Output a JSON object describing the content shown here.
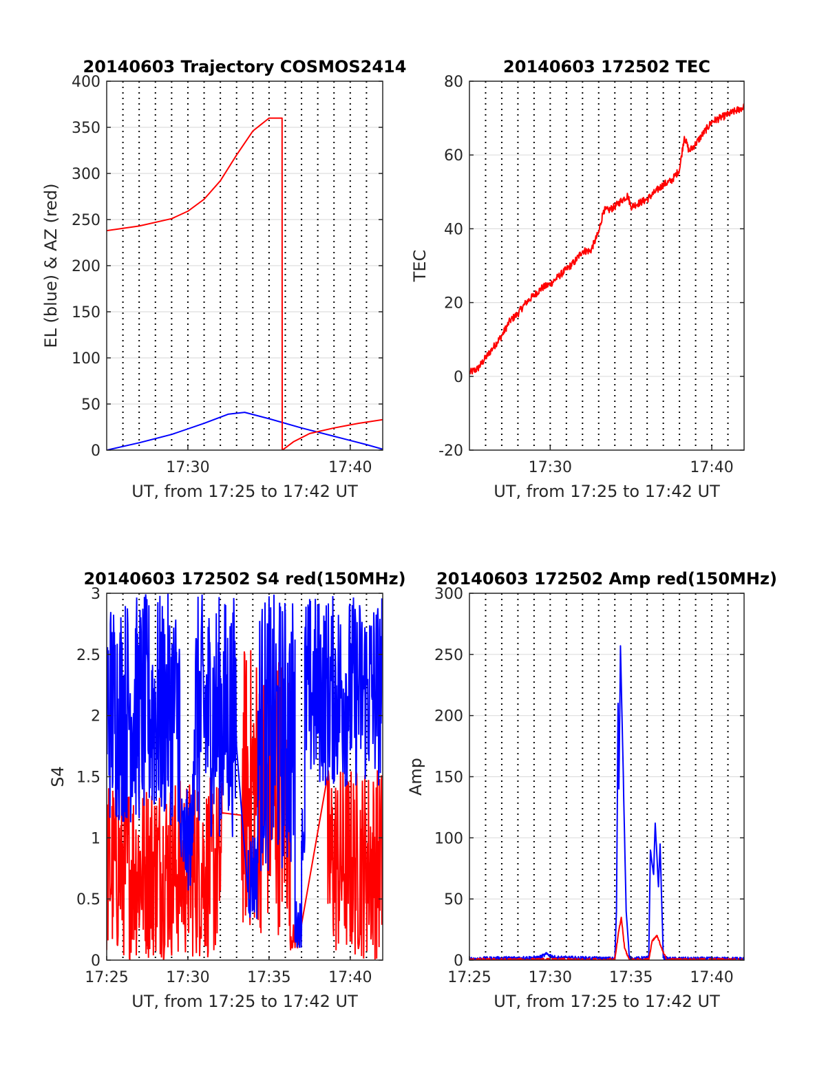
{
  "colors": {
    "el": "#0000ff",
    "az": "#ff0000",
    "tec": "#ff0000",
    "s4_red": "#ff0000",
    "s4_blue": "#0000ff",
    "amp_red": "#ff0000",
    "amp_blue": "#0000ff"
  },
  "chart_data": [
    {
      "type": "line",
      "title": "20140603 Trajectory COSMOS2414",
      "xlabel": "UT, from 17:25 to 17:42 UT",
      "ylabel": "EL (blue) & AZ (red)",
      "xlim": [
        0,
        17
      ],
      "ylim": [
        0,
        400
      ],
      "x_ticks": [
        5,
        15
      ],
      "x_tick_labels": [
        "17:30",
        "17:40"
      ],
      "y_ticks": [
        0,
        50,
        100,
        150,
        200,
        250,
        300,
        350,
        400
      ],
      "y_tick_labels": [
        "0",
        "50",
        "100",
        "150",
        "200",
        "250",
        "300",
        "350",
        "400"
      ],
      "grid": "dotted vertical lines every 1 minute, light horizontal lines at ticks",
      "series": [
        {
          "color": "#0000ff",
          "x": [
            0,
            2,
            4,
            6,
            7.5,
            8.5,
            10,
            12,
            14,
            16,
            17
          ],
          "y": [
            0,
            8,
            17,
            29,
            39,
            41,
            34,
            24,
            15,
            6,
            1
          ]
        },
        {
          "color": "#ff0000",
          "x": [
            0,
            2,
            4,
            5,
            6,
            7,
            8,
            9,
            10,
            10.8,
            10.81,
            10.82,
            11.5,
            12.5,
            14,
            15.5,
            17
          ],
          "y": [
            238,
            243,
            251,
            259,
            272,
            292,
            320,
            346,
            360,
            360,
            0,
            0,
            9,
            18,
            24,
            29,
            33
          ]
        }
      ]
    },
    {
      "type": "line",
      "title": "20140603 172502 TEC",
      "xlabel": "UT, from 17:25 to 17:42 UT",
      "ylabel": "TEC",
      "xlim": [
        0,
        17
      ],
      "ylim": [
        -20,
        80
      ],
      "x_ticks": [
        5,
        15
      ],
      "x_tick_labels": [
        "17:30",
        "17:40"
      ],
      "y_ticks": [
        -20,
        0,
        20,
        40,
        60,
        80
      ],
      "y_tick_labels": [
        "-20",
        "0",
        "20",
        "40",
        "60",
        "80"
      ],
      "grid": "dotted vertical lines every 1 minute, light horizontal lines at ticks",
      "series": [
        {
          "color": "#ff0000",
          "x": [
            0,
            0.5,
            1,
            1.5,
            2,
            2.5,
            3,
            3.5,
            4,
            4.5,
            5,
            5.5,
            6,
            6.5,
            7,
            7.5,
            8,
            8.3,
            8.6,
            9,
            9.5,
            9.8,
            10,
            10.5,
            11,
            11.5,
            12,
            12.5,
            13,
            13.3,
            13.6,
            14,
            14.5,
            15,
            15.5,
            16,
            16.5,
            17
          ],
          "y": [
            1,
            2,
            5,
            8,
            11,
            15,
            17,
            20,
            22,
            24,
            25,
            27,
            29,
            31,
            34,
            34,
            39,
            45,
            45,
            46,
            48,
            49,
            46,
            47,
            48,
            50,
            52,
            53,
            56,
            65,
            61,
            63,
            66,
            69,
            70,
            71,
            72,
            73
          ]
        }
      ]
    },
    {
      "type": "line",
      "title": "20140603 172502 S4 red(150MHz)",
      "xlabel": "UT, from 17:25 to 17:42 UT",
      "ylabel": "S4",
      "xlim": [
        0,
        17
      ],
      "ylim": [
        0,
        3
      ],
      "x_ticks": [
        0,
        5,
        10,
        15
      ],
      "x_tick_labels": [
        "17:25",
        "17:30",
        "17:35",
        "17:40"
      ],
      "y_ticks": [
        0,
        0.5,
        1,
        1.5,
        2,
        2.5,
        3
      ],
      "y_tick_labels": [
        "0",
        "0.5",
        "1",
        "1.5",
        "2",
        "2.5",
        "3"
      ],
      "grid": "dotted vertical lines every 1 minute, light horizontal lines at ticks",
      "series": [
        {
          "color": "#ff0000",
          "style": "noisy",
          "segments": [
            {
              "x": [
                0,
                7.1
              ],
              "low": 0,
              "high": 1.5
            },
            {
              "x": [
                8.3,
                11.3
              ],
              "low": 0.2,
              "high": 2.6
            },
            {
              "x": [
                11.3,
                11.9
              ],
              "low": 0.08,
              "high": 0.3
            },
            {
              "x": [
                13.6,
                17
              ],
              "low": 0,
              "high": 1.6
            }
          ]
        },
        {
          "color": "#0000ff",
          "style": "noisy",
          "segments": [
            {
              "x": [
                0,
                4.5
              ],
              "low": 1.1,
              "high": 3
            },
            {
              "x": [
                4.5,
                5.3
              ],
              "low": 0.55,
              "high": 1.4
            },
            {
              "x": [
                5.3,
                8.0
              ],
              "low": 1.0,
              "high": 3
            },
            {
              "x": [
                8.7,
                9.3
              ],
              "low": 0.3,
              "high": 1.1
            },
            {
              "x": [
                9.3,
                11.6
              ],
              "low": 0.7,
              "high": 3
            },
            {
              "x": [
                11.6,
                12.0
              ],
              "low": 0.1,
              "high": 0.5
            },
            {
              "x": [
                12.0,
                12.2
              ],
              "low": 0.8,
              "high": 1.3
            },
            {
              "x": [
                12.2,
                17
              ],
              "low": 1.4,
              "high": 3
            }
          ]
        }
      ]
    },
    {
      "type": "line",
      "title": "20140603 172502 Amp red(150MHz)",
      "xlabel": "UT, from 17:25 to 17:42 UT",
      "ylabel": "Amp",
      "xlim": [
        0,
        17
      ],
      "ylim": [
        0,
        300
      ],
      "x_ticks": [
        0,
        5,
        10,
        15
      ],
      "x_tick_labels": [
        "17:25",
        "17:30",
        "17:35",
        "17:40"
      ],
      "y_ticks": [
        0,
        50,
        100,
        150,
        200,
        250,
        300
      ],
      "y_tick_labels": [
        "0",
        "50",
        "100",
        "150",
        "200",
        "250",
        "300"
      ],
      "grid": "dotted vertical lines every 1 minute, light horizontal lines at ticks",
      "series": [
        {
          "color": "#0000ff",
          "x": [
            0,
            4.3,
            4.8,
            5.3,
            9.0,
            9.1,
            9.2,
            9.25,
            9.35,
            9.5,
            9.7,
            9.9,
            10.2,
            11.1,
            11.2,
            11.4,
            11.5,
            11.7,
            11.8,
            12.0,
            12.3,
            17
          ],
          "y": [
            1,
            2,
            5,
            2,
            1,
            40,
            210,
            140,
            257,
            165,
            40,
            2,
            1,
            2,
            90,
            70,
            112,
            60,
            95,
            2,
            1,
            1
          ]
        },
        {
          "color": "#ff0000",
          "x": [
            0,
            9.0,
            9.2,
            9.4,
            9.6,
            9.9,
            11.1,
            11.3,
            11.6,
            11.9,
            12.2,
            17
          ],
          "y": [
            0,
            0,
            20,
            35,
            10,
            0,
            0,
            15,
            20,
            10,
            0,
            0
          ]
        }
      ]
    }
  ]
}
